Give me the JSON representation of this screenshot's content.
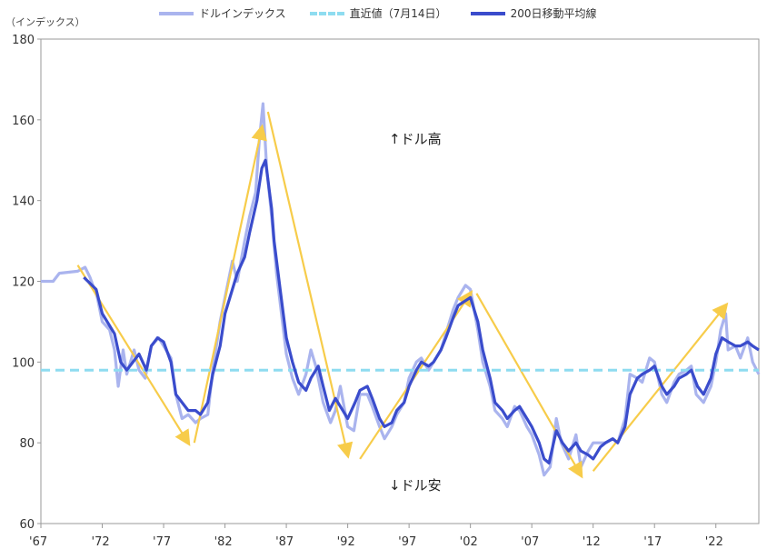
{
  "legend": {
    "index_label": "ドルインデックス",
    "latest_label": "直近値（7月14日）",
    "ma_label": "200日移動平均線"
  },
  "ylabel": "（インデックス）",
  "annotations": {
    "up": "↑ドル高",
    "down": "↓ドル安"
  },
  "colors": {
    "index": "#aab4ee",
    "latest": "#8edcf0",
    "ma": "#3a4ccc",
    "trend": "#f7cc4a",
    "axis": "#999999"
  },
  "chart_data": {
    "type": "line",
    "title": "",
    "xlabel": "",
    "ylabel": "（インデックス）",
    "xlim": [
      1967,
      2025.5
    ],
    "ylim": [
      60,
      180
    ],
    "x_ticks": [
      1967,
      1972,
      1977,
      1982,
      1987,
      1992,
      1997,
      2002,
      2007,
      2012,
      2017,
      2022
    ],
    "x_tick_labels": [
      "'67",
      "'72",
      "'77",
      "'82",
      "'87",
      "'92",
      "'97",
      "'02",
      "'07",
      "'12",
      "'17",
      "'22"
    ],
    "y_ticks": [
      60,
      80,
      100,
      120,
      140,
      160,
      180
    ],
    "grid": false,
    "legend_position": "top",
    "latest_value": 98,
    "series": [
      {
        "name": "ドルインデックス",
        "style": "jagged",
        "points": [
          [
            1967,
            120
          ],
          [
            1968,
            120
          ],
          [
            1968.5,
            122
          ],
          [
            1970,
            122.5
          ],
          [
            1970.6,
            123.5
          ],
          [
            1971,
            121
          ],
          [
            1971.6,
            116
          ],
          [
            1972,
            110
          ],
          [
            1972.6,
            108
          ],
          [
            1973,
            103
          ],
          [
            1973.3,
            94
          ],
          [
            1973.7,
            103
          ],
          [
            1974,
            97
          ],
          [
            1974.6,
            103
          ],
          [
            1975,
            98
          ],
          [
            1975.5,
            96
          ],
          [
            1976,
            104
          ],
          [
            1976.6,
            106
          ],
          [
            1977,
            104
          ],
          [
            1977.6,
            101
          ],
          [
            1978,
            92
          ],
          [
            1978.5,
            86
          ],
          [
            1979,
            87
          ],
          [
            1979.6,
            85
          ],
          [
            1980,
            86
          ],
          [
            1980.6,
            87
          ],
          [
            1981,
            98
          ],
          [
            1981.6,
            110
          ],
          [
            1982,
            116
          ],
          [
            1982.6,
            125
          ],
          [
            1983,
            120
          ],
          [
            1983.6,
            130
          ],
          [
            1984,
            136
          ],
          [
            1984.5,
            142
          ],
          [
            1984.8,
            155
          ],
          [
            1985.1,
            164
          ],
          [
            1985.4,
            148
          ],
          [
            1985.8,
            136
          ],
          [
            1986.2,
            122
          ],
          [
            1986.6,
            112
          ],
          [
            1987,
            102
          ],
          [
            1987.5,
            96
          ],
          [
            1988,
            92
          ],
          [
            1988.6,
            97
          ],
          [
            1989,
            103
          ],
          [
            1989.4,
            99
          ],
          [
            1990,
            90
          ],
          [
            1990.6,
            85
          ],
          [
            1991,
            88
          ],
          [
            1991.4,
            94
          ],
          [
            1992,
            84
          ],
          [
            1992.5,
            83
          ],
          [
            1993,
            92
          ],
          [
            1993.6,
            92
          ],
          [
            1994,
            89
          ],
          [
            1994.6,
            84
          ],
          [
            1995,
            81
          ],
          [
            1995.6,
            84
          ],
          [
            1996,
            87
          ],
          [
            1996.6,
            90
          ],
          [
            1997,
            96
          ],
          [
            1997.6,
            100
          ],
          [
            1998,
            101
          ],
          [
            1998.6,
            98
          ],
          [
            1999,
            100
          ],
          [
            1999.6,
            103
          ],
          [
            2000,
            107
          ],
          [
            2000.6,
            113
          ],
          [
            2001,
            116
          ],
          [
            2001.6,
            119
          ],
          [
            2002,
            118
          ],
          [
            2002.6,
            108
          ],
          [
            2003,
            100
          ],
          [
            2003.6,
            94
          ],
          [
            2004,
            88
          ],
          [
            2004.6,
            86
          ],
          [
            2005,
            84
          ],
          [
            2005.6,
            89
          ],
          [
            2006,
            88
          ],
          [
            2006.6,
            84
          ],
          [
            2007,
            82
          ],
          [
            2007.6,
            77
          ],
          [
            2008,
            72
          ],
          [
            2008.5,
            74
          ],
          [
            2009,
            86
          ],
          [
            2009.4,
            80
          ],
          [
            2010,
            76
          ],
          [
            2010.6,
            82
          ],
          [
            2011,
            74
          ],
          [
            2011.6,
            78
          ],
          [
            2012,
            80
          ],
          [
            2012.6,
            80
          ],
          [
            2013,
            80
          ],
          [
            2013.6,
            81
          ],
          [
            2014,
            80
          ],
          [
            2014.6,
            86
          ],
          [
            2015,
            97
          ],
          [
            2015.6,
            96
          ],
          [
            2016,
            95
          ],
          [
            2016.6,
            101
          ],
          [
            2017,
            100
          ],
          [
            2017.6,
            92
          ],
          [
            2018,
            90
          ],
          [
            2018.6,
            95
          ],
          [
            2019,
            97
          ],
          [
            2019.6,
            98
          ],
          [
            2020,
            99
          ],
          [
            2020.4,
            92
          ],
          [
            2021,
            90
          ],
          [
            2021.6,
            94
          ],
          [
            2022,
            100
          ],
          [
            2022.4,
            108
          ],
          [
            2022.8,
            112
          ],
          [
            2023,
            103
          ],
          [
            2023.6,
            104
          ],
          [
            2024,
            101
          ],
          [
            2024.6,
            106
          ],
          [
            2025,
            100
          ],
          [
            2025.5,
            97
          ]
        ]
      },
      {
        "name": "200日移動平均線",
        "style": "smooth",
        "points": [
          [
            1970.5,
            121
          ],
          [
            1971.5,
            118
          ],
          [
            1972,
            112
          ],
          [
            1973,
            107
          ],
          [
            1973.5,
            100
          ],
          [
            1974,
            98
          ],
          [
            1975,
            102
          ],
          [
            1975.6,
            98
          ],
          [
            1976,
            104
          ],
          [
            1976.5,
            106
          ],
          [
            1977,
            105
          ],
          [
            1977.6,
            100
          ],
          [
            1978,
            92
          ],
          [
            1979,
            88
          ],
          [
            1979.6,
            88
          ],
          [
            1980,
            87
          ],
          [
            1980.6,
            90
          ],
          [
            1981,
            97
          ],
          [
            1981.6,
            104
          ],
          [
            1982,
            112
          ],
          [
            1982.6,
            118
          ],
          [
            1983,
            122
          ],
          [
            1983.6,
            126
          ],
          [
            1984,
            132
          ],
          [
            1984.6,
            140
          ],
          [
            1985,
            148
          ],
          [
            1985.3,
            150
          ],
          [
            1985.8,
            138
          ],
          [
            1986,
            130
          ],
          [
            1986.5,
            118
          ],
          [
            1987,
            106
          ],
          [
            1987.5,
            100
          ],
          [
            1988,
            95
          ],
          [
            1988.6,
            93
          ],
          [
            1989,
            96
          ],
          [
            1989.6,
            99
          ],
          [
            1990,
            94
          ],
          [
            1990.5,
            88
          ],
          [
            1991,
            91
          ],
          [
            1991.6,
            88
          ],
          [
            1992,
            86
          ],
          [
            1992.6,
            90
          ],
          [
            1993,
            93
          ],
          [
            1993.6,
            94
          ],
          [
            1994,
            91
          ],
          [
            1994.6,
            86
          ],
          [
            1995,
            84
          ],
          [
            1995.6,
            85
          ],
          [
            1996,
            88
          ],
          [
            1996.6,
            90
          ],
          [
            1997,
            94
          ],
          [
            1997.6,
            98
          ],
          [
            1998,
            100
          ],
          [
            1998.6,
            99
          ],
          [
            1999,
            100
          ],
          [
            1999.6,
            103
          ],
          [
            2000,
            106
          ],
          [
            2000.6,
            111
          ],
          [
            2001,
            114
          ],
          [
            2001.5,
            115
          ],
          [
            2002,
            116
          ],
          [
            2002.6,
            110
          ],
          [
            2003,
            103
          ],
          [
            2003.6,
            96
          ],
          [
            2004,
            90
          ],
          [
            2004.6,
            88
          ],
          [
            2005,
            86
          ],
          [
            2005.6,
            88
          ],
          [
            2006,
            89
          ],
          [
            2006.6,
            86
          ],
          [
            2007,
            84
          ],
          [
            2007.6,
            80
          ],
          [
            2008,
            76
          ],
          [
            2008.4,
            75
          ],
          [
            2009,
            83
          ],
          [
            2009.5,
            80
          ],
          [
            2010,
            78
          ],
          [
            2010.6,
            80
          ],
          [
            2011,
            78
          ],
          [
            2011.6,
            77
          ],
          [
            2012,
            76
          ],
          [
            2012.6,
            79
          ],
          [
            2013,
            80
          ],
          [
            2013.6,
            81
          ],
          [
            2014,
            80
          ],
          [
            2014.6,
            84
          ],
          [
            2015,
            92
          ],
          [
            2015.6,
            96
          ],
          [
            2016,
            97
          ],
          [
            2016.6,
            98
          ],
          [
            2017,
            99
          ],
          [
            2017.6,
            94
          ],
          [
            2018,
            92
          ],
          [
            2018.6,
            94
          ],
          [
            2019,
            96
          ],
          [
            2019.6,
            97
          ],
          [
            2020,
            98
          ],
          [
            2020.5,
            94
          ],
          [
            2021,
            92
          ],
          [
            2021.6,
            96
          ],
          [
            2022,
            102
          ],
          [
            2022.5,
            106
          ],
          [
            2023,
            105
          ],
          [
            2023.6,
            104
          ],
          [
            2024,
            104
          ],
          [
            2024.6,
            105
          ],
          [
            2025,
            104
          ],
          [
            2025.5,
            103
          ]
        ]
      }
    ],
    "trend_lines": [
      [
        [
          1970,
          124
        ],
        [
          1979,
          80
        ]
      ],
      [
        [
          1979.5,
          80
        ],
        [
          1985,
          158
        ]
      ],
      [
        [
          1985.5,
          162
        ],
        [
          1992,
          77
        ]
      ],
      [
        [
          1993,
          76
        ],
        [
          2002,
          117
        ]
      ],
      [
        [
          2002.5,
          117
        ],
        [
          2011,
          72
        ]
      ],
      [
        [
          2012,
          73
        ],
        [
          2022.8,
          114
        ]
      ]
    ]
  }
}
